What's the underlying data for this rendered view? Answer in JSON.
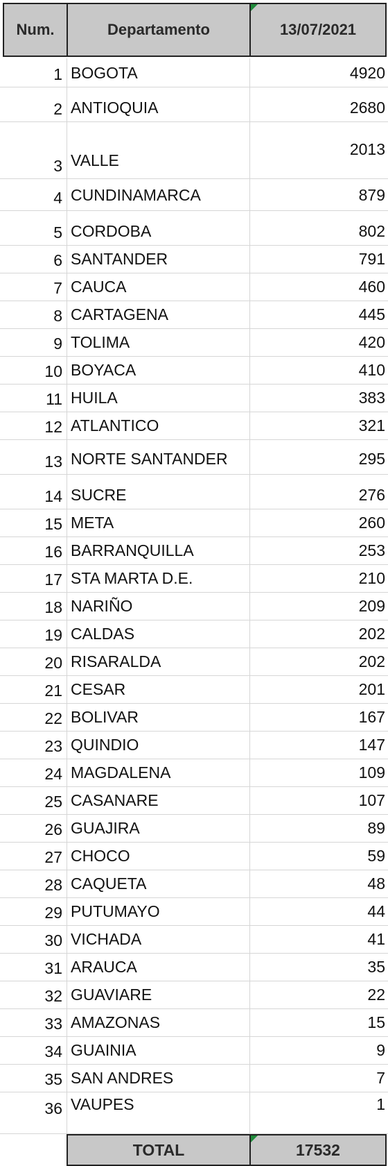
{
  "header": {
    "num": "Num.",
    "departamento": "Departamento",
    "date": "13/07/2021"
  },
  "rows": [
    {
      "num": "1",
      "name": "BOGOTA",
      "value": "4920"
    },
    {
      "num": "2",
      "name": "ANTIOQUIA",
      "value": "2680"
    },
    {
      "num": "3",
      "name": "VALLE",
      "value": "2013"
    },
    {
      "num": "4",
      "name": "CUNDINAMARCA",
      "value": "879"
    },
    {
      "num": "5",
      "name": "CORDOBA",
      "value": "802"
    },
    {
      "num": "6",
      "name": "SANTANDER",
      "value": "791"
    },
    {
      "num": "7",
      "name": "CAUCA",
      "value": "460"
    },
    {
      "num": "8",
      "name": "CARTAGENA",
      "value": "445"
    },
    {
      "num": "9",
      "name": "TOLIMA",
      "value": "420"
    },
    {
      "num": "10",
      "name": "BOYACA",
      "value": "410"
    },
    {
      "num": "11",
      "name": "HUILA",
      "value": "383"
    },
    {
      "num": "12",
      "name": "ATLANTICO",
      "value": "321"
    },
    {
      "num": "13",
      "name": "NORTE SANTANDER",
      "value": "295"
    },
    {
      "num": "14",
      "name": "SUCRE",
      "value": "276"
    },
    {
      "num": "15",
      "name": "META",
      "value": "260"
    },
    {
      "num": "16",
      "name": "BARRANQUILLA",
      "value": "253"
    },
    {
      "num": "17",
      "name": "STA MARTA D.E.",
      "value": "210"
    },
    {
      "num": "18",
      "name": "NARIÑO",
      "value": "209"
    },
    {
      "num": "19",
      "name": "CALDAS",
      "value": "202"
    },
    {
      "num": "20",
      "name": "RISARALDA",
      "value": "202"
    },
    {
      "num": "21",
      "name": "CESAR",
      "value": "201"
    },
    {
      "num": "22",
      "name": "BOLIVAR",
      "value": "167"
    },
    {
      "num": "23",
      "name": "QUINDIO",
      "value": "147"
    },
    {
      "num": "24",
      "name": "MAGDALENA",
      "value": "109"
    },
    {
      "num": "25",
      "name": "CASANARE",
      "value": "107"
    },
    {
      "num": "26",
      "name": "GUAJIRA",
      "value": "89"
    },
    {
      "num": "27",
      "name": "CHOCO",
      "value": "59"
    },
    {
      "num": "28",
      "name": "CAQUETA",
      "value": "48"
    },
    {
      "num": "29",
      "name": "PUTUMAYO",
      "value": "44"
    },
    {
      "num": "30",
      "name": "VICHADA",
      "value": "41"
    },
    {
      "num": "31",
      "name": "ARAUCA",
      "value": "35"
    },
    {
      "num": "32",
      "name": "GUAVIARE",
      "value": "22"
    },
    {
      "num": "33",
      "name": "AMAZONAS",
      "value": "15"
    },
    {
      "num": "34",
      "name": "GUAINIA",
      "value": "9"
    },
    {
      "num": "35",
      "name": "SAN ANDRES",
      "value": "7"
    },
    {
      "num": "36",
      "name": "VAUPES",
      "value": "1"
    }
  ],
  "total": {
    "label": "TOTAL",
    "value": "17532"
  },
  "colors": {
    "header_fill": "#c8c8c8",
    "border": "#222222",
    "gridline": "#d6d6d6",
    "marker_green": "#1f8a3a"
  }
}
